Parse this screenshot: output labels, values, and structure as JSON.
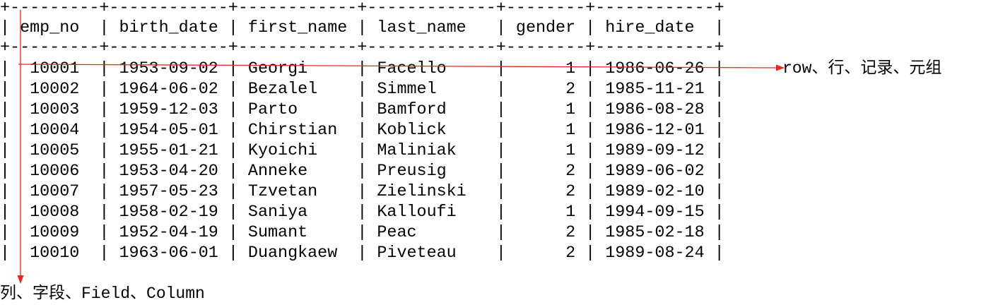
{
  "table": {
    "border_line": "+---------+------------+------------+-------------+--------+------------+",
    "header_line": "| emp_no  | birth_date | first_name | last_name   | gender | hire_date  |",
    "columns": [
      "emp_no",
      "birth_date",
      "first_name",
      "last_name",
      "gender",
      "hire_date"
    ],
    "rows": [
      {
        "line": "|  10001  | 1953-09-02 | Georgi     | Facello     |      1 | 1986-06-26 |",
        "values": [
          "10001",
          "1953-09-02",
          "Georgi",
          "Facello",
          "1",
          "1986-06-26"
        ]
      },
      {
        "line": "|  10002  | 1964-06-02 | Bezalel    | Simmel      |      2 | 1985-11-21 |",
        "values": [
          "10002",
          "1964-06-02",
          "Bezalel",
          "Simmel",
          "2",
          "1985-11-21"
        ]
      },
      {
        "line": "|  10003  | 1959-12-03 | Parto      | Bamford     |      1 | 1986-08-28 |",
        "values": [
          "10003",
          "1959-12-03",
          "Parto",
          "Bamford",
          "1",
          "1986-08-28"
        ]
      },
      {
        "line": "|  10004  | 1954-05-01 | Chirstian  | Koblick     |      1 | 1986-12-01 |",
        "values": [
          "10004",
          "1954-05-01",
          "Chirstian",
          "Koblick",
          "1",
          "1986-12-01"
        ]
      },
      {
        "line": "|  10005  | 1955-01-21 | Kyoichi    | Maliniak    |      1 | 1989-09-12 |",
        "values": [
          "10005",
          "1955-01-21",
          "Kyoichi",
          "Maliniak",
          "1",
          "1989-09-12"
        ]
      },
      {
        "line": "|  10006  | 1953-04-20 | Anneke     | Preusig     |      2 | 1989-06-02 |",
        "values": [
          "10006",
          "1953-04-20",
          "Anneke",
          "Preusig",
          "2",
          "1989-06-02"
        ]
      },
      {
        "line": "|  10007  | 1957-05-23 | Tzvetan    | Zielinski   |      2 | 1989-02-10 |",
        "values": [
          "10007",
          "1957-05-23",
          "Tzvetan",
          "Zielinski",
          "2",
          "1989-02-10"
        ]
      },
      {
        "line": "|  10008  | 1958-02-19 | Saniya     | Kalloufi    |      1 | 1994-09-15 |",
        "values": [
          "10008",
          "1958-02-19",
          "Saniya",
          "Kalloufi",
          "1",
          "1994-09-15"
        ]
      },
      {
        "line": "|  10009  | 1952-04-19 | Sumant     | Peac        |      2 | 1985-02-18 |",
        "values": [
          "10009",
          "1952-04-19",
          "Sumant",
          "Peac",
          "2",
          "1985-02-18"
        ]
      },
      {
        "line": "|  10010  | 1963-06-01 | Duangkaew  | Piveteau    |      2 | 1989-08-24 |",
        "values": [
          "10010",
          "1963-06-01",
          "Duangkaew",
          "Piveteau",
          "2",
          "1989-08-24"
        ]
      }
    ]
  },
  "annotations": {
    "row_label": "row、行、记录、元组",
    "column_label": "列、字段、Field、Column"
  },
  "colors": {
    "text": "#000000",
    "arrow": "#e8261c",
    "background": "#ffffff"
  }
}
